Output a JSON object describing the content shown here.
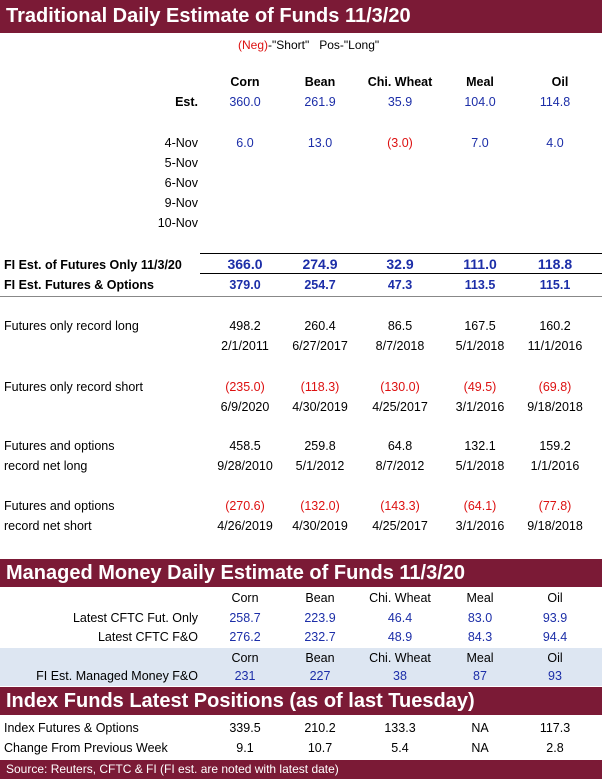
{
  "section1": {
    "title": "Traditional Daily Estimate of Funds 11/3/20",
    "legend": {
      "neg": "(Neg)",
      "short": "-\"Short\"",
      "pos": "Pos-\"Long\""
    },
    "columns": [
      "Corn",
      "Bean",
      "Chi. Wheat",
      "Meal",
      "Oil"
    ],
    "est": {
      "label": "Est.",
      "values": [
        "360.0",
        "261.9",
        "35.9",
        "104.0",
        "114.8"
      ]
    },
    "daily": [
      {
        "date": "4-Nov",
        "values": [
          "6.0",
          "13.0",
          "(3.0)",
          "7.0",
          "4.0"
        ]
      },
      {
        "date": "5-Nov",
        "values": [
          "",
          "",
          "",
          "",
          ""
        ]
      },
      {
        "date": "6-Nov",
        "values": [
          "",
          "",
          "",
          "",
          ""
        ]
      },
      {
        "date": "9-Nov",
        "values": [
          "",
          "",
          "",
          "",
          ""
        ]
      },
      {
        "date": "10-Nov",
        "values": [
          "",
          "",
          "",
          "",
          ""
        ]
      }
    ],
    "fi_futures": {
      "label": "FI Est. of Futures Only 11/3/20",
      "values": [
        "366.0",
        "274.9",
        "32.9",
        "111.0",
        "118.8"
      ]
    },
    "fi_fo": {
      "label": "FI Est. Futures & Options",
      "values": [
        "379.0",
        "254.7",
        "47.3",
        "113.5",
        "115.1"
      ]
    },
    "records": [
      {
        "label1": "Futures only record long",
        "label2": "",
        "values": [
          "498.2",
          "260.4",
          "86.5",
          "167.5",
          "160.2"
        ],
        "dates": [
          "2/1/2011",
          "6/27/2017",
          "8/7/2018",
          "5/1/2018",
          "11/1/2016"
        ],
        "neg": false
      },
      {
        "label1": "Futures only record short",
        "label2": "",
        "values": [
          "(235.0)",
          "(118.3)",
          "(130.0)",
          "(49.5)",
          "(69.8)"
        ],
        "dates": [
          "6/9/2020",
          "4/30/2019",
          "4/25/2017",
          "3/1/2016",
          "9/18/2018"
        ],
        "neg": true
      },
      {
        "label1": "Futures and options",
        "label2": "record net long",
        "values": [
          "458.5",
          "259.8",
          "64.8",
          "132.1",
          "159.2"
        ],
        "dates": [
          "9/28/2010",
          "5/1/2012",
          "8/7/2012",
          "5/1/2018",
          "1/1/2016"
        ],
        "neg": false
      },
      {
        "label1": "Futures and options",
        "label2": "record net short",
        "values": [
          "(270.6)",
          "(132.0)",
          "(143.3)",
          "(64.1)",
          "(77.8)"
        ],
        "dates": [
          "4/26/2019",
          "4/30/2019",
          "4/25/2017",
          "3/1/2016",
          "9/18/2018"
        ],
        "neg": true
      }
    ]
  },
  "section2": {
    "title": "Managed Money Daily Estimate of Funds 11/3/20",
    "columns": [
      "Corn",
      "Bean",
      "Chi. Wheat",
      "Meal",
      "Oil"
    ],
    "rows": [
      {
        "label": "Latest CFTC Fut. Only",
        "values": [
          "258.7",
          "223.9",
          "46.4",
          "83.0",
          "93.9"
        ]
      },
      {
        "label": "Latest CFTC F&O",
        "values": [
          "276.2",
          "232.7",
          "48.9",
          "84.3",
          "94.4"
        ]
      }
    ],
    "fi_row": {
      "label": "FI Est. Managed Money F&O",
      "values": [
        "231",
        "227",
        "38",
        "87",
        "93"
      ]
    }
  },
  "section3": {
    "title": "Index Funds Latest Positions (as of last Tuesday)",
    "rows": [
      {
        "label": "Index Futures & Options",
        "values": [
          "339.5",
          "210.2",
          "133.3",
          "NA",
          "117.3"
        ]
      },
      {
        "label": "Change From Previous Week",
        "values": [
          "9.1",
          "10.7",
          "5.4",
          "NA",
          "2.8"
        ]
      }
    ]
  },
  "footer": {
    "source": "Source: Reuters, CFTC & FI (FI est. are noted with latest date)"
  },
  "colors": {
    "banner": "#7b1a36",
    "blue": "#1c2ea8",
    "red": "#d11111",
    "shade": "#dde6f2"
  }
}
